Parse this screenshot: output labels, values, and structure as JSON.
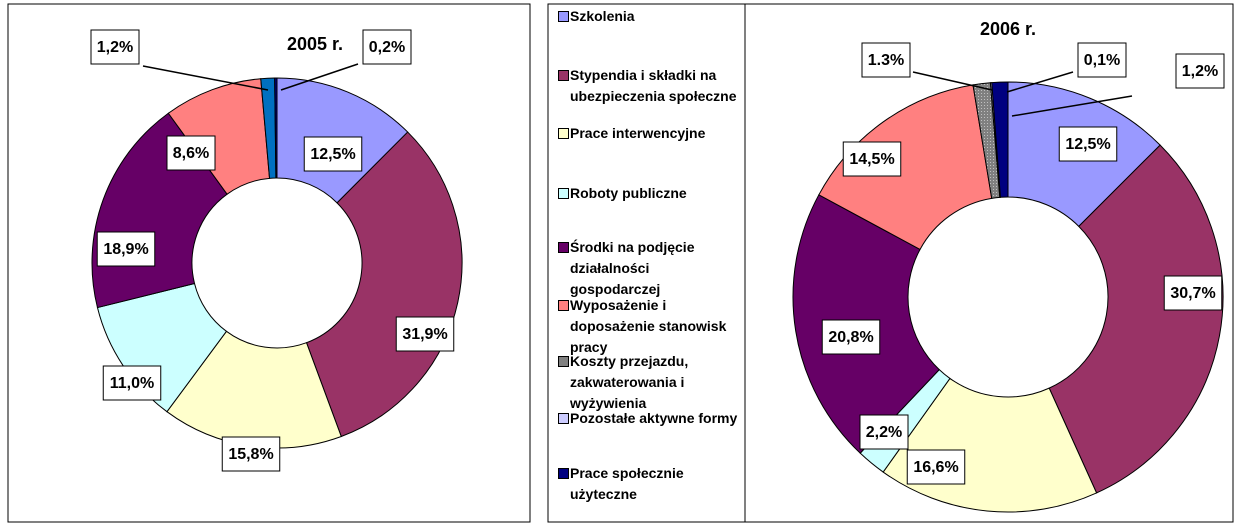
{
  "legend": [
    {
      "name": "Szkolenia",
      "color": "#9999FF"
    },
    {
      "name": "Stypendia i składki na ubezpieczenia społeczne",
      "color": "#993366"
    },
    {
      "name": "Prace interwencyjne",
      "color": "#FFFFCC"
    },
    {
      "name": "Roboty publiczne",
      "color": "#CCFFFF"
    },
    {
      "name": "Środki na podjęcie działalności gospodarczej",
      "color": "#660066"
    },
    {
      "name": "Wyposażenie i doposażenie stanowisk pracy",
      "color": "#FF8080"
    },
    {
      "name": "Koszty przejazdu, zakwaterowania i wyżywienia",
      "color": "#808080"
    },
    {
      "name": "Pozostałe aktywne formy",
      "color": "#CCCCFF"
    },
    {
      "name": "Prace społecznie użyteczne",
      "color": "#000080"
    }
  ],
  "chart_data": [
    {
      "type": "donut",
      "title": "2005 r.",
      "values": [
        12.5,
        31.9,
        15.8,
        11.0,
        18.9,
        8.6,
        1.2,
        null,
        0.2
      ],
      "value_labels": [
        "12,5%",
        "31,9%",
        "15,8%",
        "11,0%",
        "18,9%",
        "8,6%",
        "1,2%",
        null,
        "0,2%"
      ],
      "colors": [
        "#9999FF",
        "#993366",
        "#FFFFCC",
        "#CCFFFF",
        "#660066",
        "#FF8080",
        "#0070C0",
        "#CCCCFF",
        "#000080"
      ]
    },
    {
      "type": "donut",
      "title": "2006 r.",
      "values": [
        12.5,
        30.7,
        16.6,
        2.2,
        20.8,
        14.5,
        1.3,
        0.1,
        1.2
      ],
      "value_labels": [
        "12,5%",
        "30,7%",
        "16,6%",
        "2,2%",
        "20,8%",
        "14,5%",
        "1.3%",
        "0,1%",
        "1,2%"
      ],
      "colors": [
        "#9999FF",
        "#993366",
        "#FFFFCC",
        "#CCFFFF",
        "#660066",
        "#FF8080",
        "#808080",
        "#CCCCFF",
        "#000080"
      ]
    }
  ]
}
